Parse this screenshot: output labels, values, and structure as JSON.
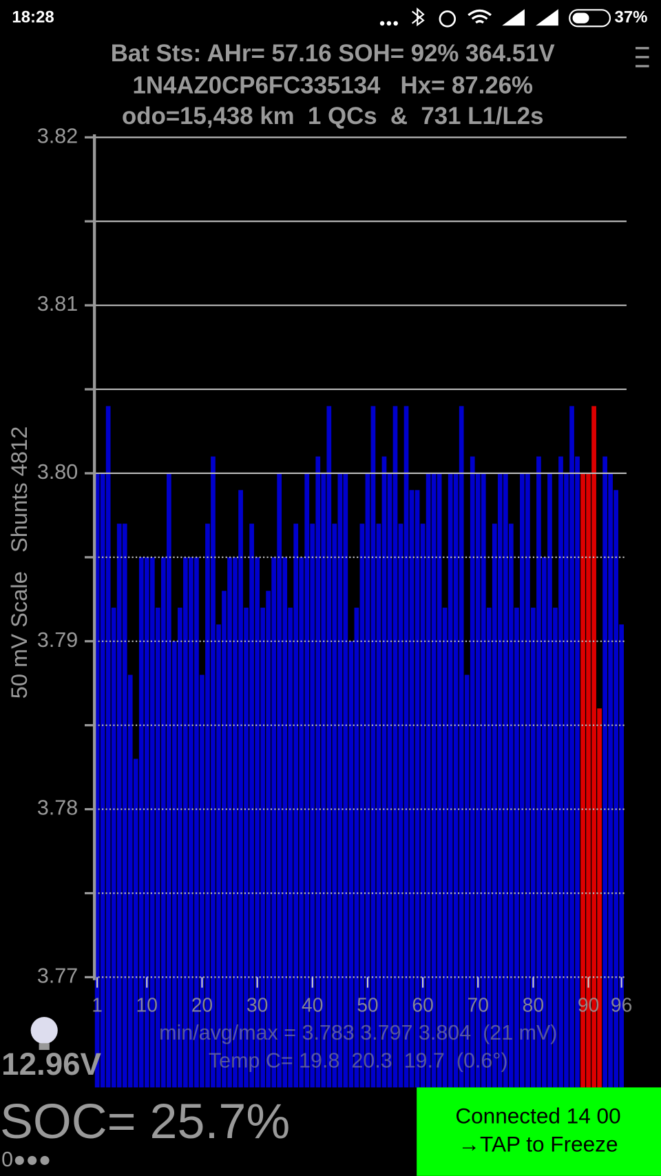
{
  "status_bar": {
    "time": "18:28",
    "battery": "37%"
  },
  "header": {
    "line1": "Bat Sts: AHr= 57.16 SOH= 92% 364.51V",
    "line2": "1N4AZ0CP6FC335134   Hx= 87.26%",
    "line3": "odo=15,438 km  1 QCs  &  731 L1/L2s"
  },
  "chart_data": {
    "type": "bar",
    "y_label": "50 mV Scale   Shunts 4812",
    "annotations": [
      "min/avg/max = 3.783 3.797 3.804  (21 mV)",
      "Temp C= 19.8  20.3  19.7  (0.6°)"
    ],
    "categories": [
      "1",
      null,
      null,
      null,
      null,
      null,
      null,
      null,
      null,
      "10",
      null,
      null,
      null,
      null,
      null,
      null,
      null,
      null,
      null,
      "20",
      null,
      null,
      null,
      null,
      null,
      null,
      null,
      null,
      null,
      "30",
      null,
      null,
      null,
      null,
      null,
      null,
      null,
      null,
      null,
      "40",
      null,
      null,
      null,
      null,
      null,
      null,
      null,
      null,
      null,
      "50",
      null,
      null,
      null,
      null,
      null,
      null,
      null,
      null,
      null,
      "60",
      null,
      null,
      null,
      null,
      null,
      null,
      null,
      null,
      null,
      "70",
      null,
      null,
      null,
      null,
      null,
      null,
      null,
      null,
      null,
      "80",
      null,
      null,
      null,
      null,
      null,
      null,
      null,
      null,
      null,
      "90",
      null,
      null,
      null,
      null,
      null,
      "96"
    ],
    "values": [
      3.8,
      3.8,
      3.804,
      3.792,
      3.797,
      3.797,
      3.788,
      3.783,
      3.795,
      3.795,
      3.795,
      3.792,
      3.795,
      3.8,
      3.79,
      3.792,
      3.795,
      3.795,
      3.795,
      3.788,
      3.797,
      3.801,
      3.791,
      3.793,
      3.795,
      3.795,
      3.799,
      3.792,
      3.797,
      3.795,
      3.792,
      3.793,
      3.795,
      3.8,
      3.795,
      3.792,
      3.797,
      3.795,
      3.8,
      3.797,
      3.801,
      3.8,
      3.804,
      3.797,
      3.8,
      3.8,
      3.79,
      3.792,
      3.797,
      3.8,
      3.804,
      3.797,
      3.801,
      3.8,
      3.804,
      3.797,
      3.804,
      3.799,
      3.799,
      3.797,
      3.8,
      3.8,
      3.8,
      3.792,
      3.8,
      3.8,
      3.804,
      3.788,
      3.801,
      3.8,
      3.8,
      3.792,
      3.797,
      3.8,
      3.8,
      3.797,
      3.792,
      3.8,
      3.8,
      3.792,
      3.801,
      3.795,
      3.8,
      3.792,
      3.801,
      3.8,
      3.804,
      3.801,
      3.8,
      3.8,
      3.804,
      3.786,
      3.801,
      3.8,
      3.799,
      3.791
    ],
    "colors": [
      "#0000cc",
      "#0000cc",
      "#0000cc",
      "#0000cc",
      "#0000cc",
      "#0000cc",
      "#0000cc",
      "#0000cc",
      "#0000cc",
      "#0000cc",
      "#0000cc",
      "#0000cc",
      "#0000cc",
      "#0000cc",
      "#0000cc",
      "#0000cc",
      "#0000cc",
      "#0000cc",
      "#0000cc",
      "#0000cc",
      "#0000cc",
      "#0000cc",
      "#0000cc",
      "#0000cc",
      "#0000cc",
      "#0000cc",
      "#0000cc",
      "#0000cc",
      "#0000cc",
      "#0000cc",
      "#0000cc",
      "#0000cc",
      "#0000cc",
      "#0000cc",
      "#0000cc",
      "#0000cc",
      "#0000cc",
      "#0000cc",
      "#0000cc",
      "#0000cc",
      "#0000cc",
      "#0000cc",
      "#0000cc",
      "#0000cc",
      "#0000cc",
      "#0000cc",
      "#0000cc",
      "#0000cc",
      "#0000cc",
      "#0000cc",
      "#0000cc",
      "#0000cc",
      "#0000cc",
      "#0000cc",
      "#0000cc",
      "#0000cc",
      "#0000cc",
      "#0000cc",
      "#0000cc",
      "#0000cc",
      "#0000cc",
      "#0000cc",
      "#0000cc",
      "#0000cc",
      "#0000cc",
      "#0000cc",
      "#0000cc",
      "#0000cc",
      "#0000cc",
      "#0000cc",
      "#0000cc",
      "#0000cc",
      "#0000cc",
      "#0000cc",
      "#0000cc",
      "#0000cc",
      "#0000cc",
      "#0000cc",
      "#0000cc",
      "#0000cc",
      "#0000cc",
      "#0000cc",
      "#0000cc",
      "#0000cc",
      "#0000cc",
      "#0000cc",
      "#0000cc",
      "#0000cc",
      "#dd0000",
      "#dd0000",
      "#dd0000",
      "#dd0000",
      "#0000cc",
      "#0000cc",
      "#0000cc",
      "#0000cc"
    ],
    "ylim": [
      3.77,
      3.82
    ],
    "yticks": [
      3.77,
      3.78,
      3.79,
      {
        "value": 3.8,
        "label": "3.80"
      },
      3.81,
      3.82
    ],
    "minor_yticks": [
      3.775,
      3.785,
      3.795,
      3.805,
      3.815
    ],
    "grid": true
  },
  "footer": {
    "voltage": "12.96V",
    "soc": "SOC= 25.7%",
    "indicator": "0●●●",
    "button": {
      "line1": "Connected 14 00",
      "line2": "→TAP to Freeze"
    }
  }
}
